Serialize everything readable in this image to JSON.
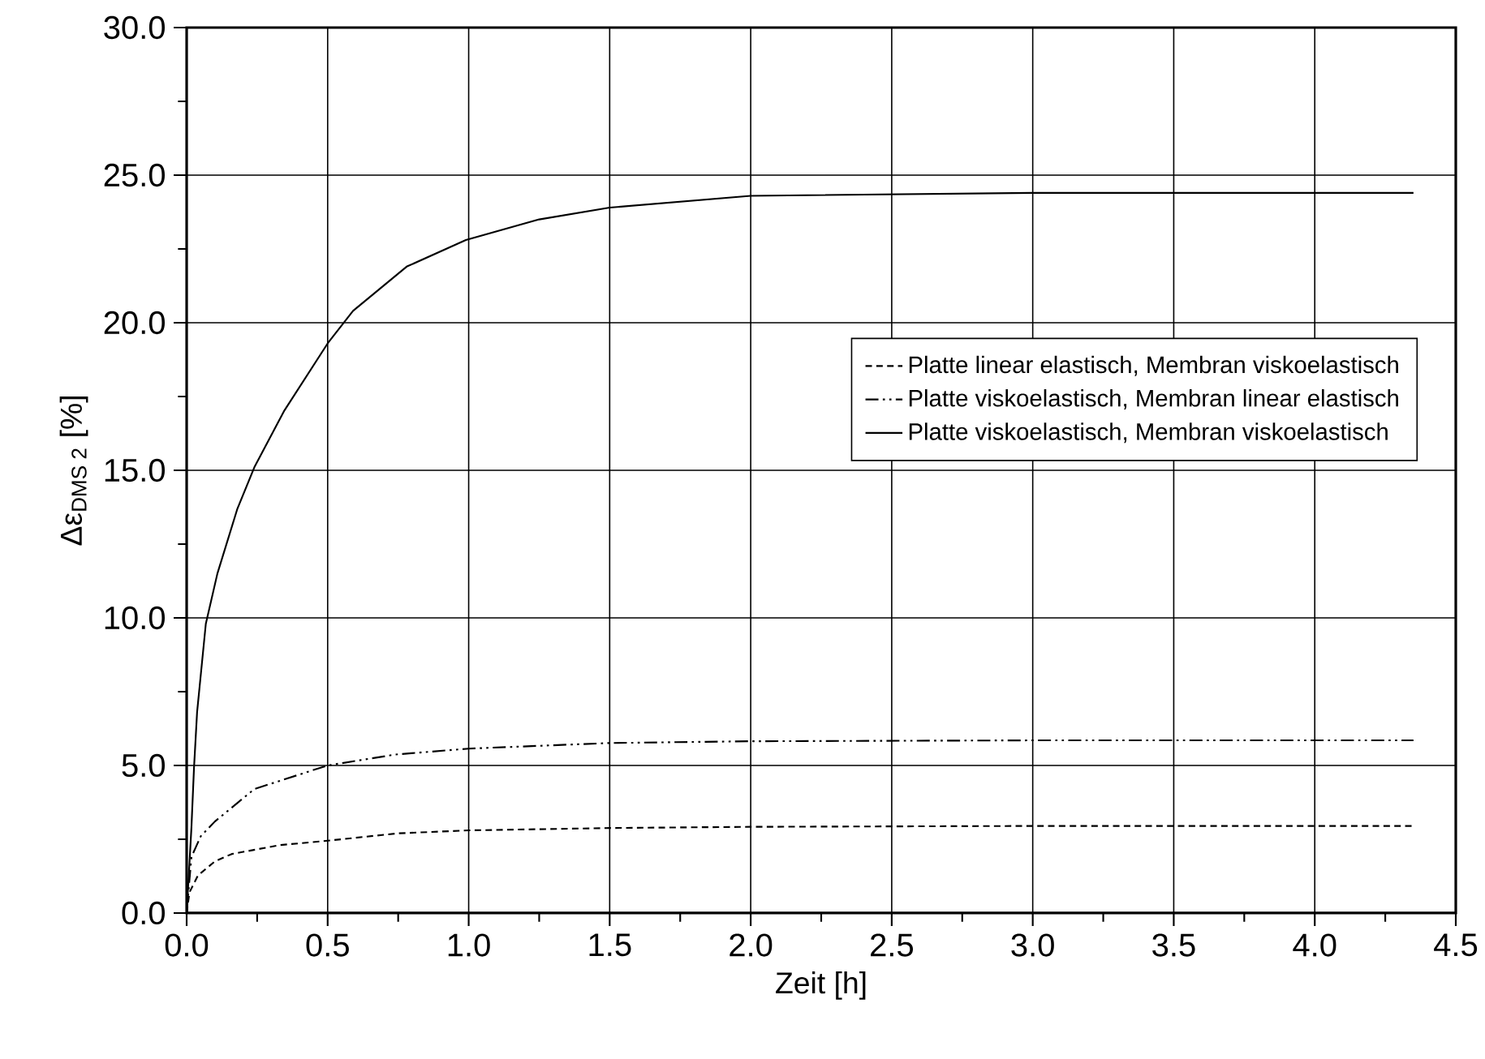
{
  "chart_data": {
    "type": "line",
    "xlabel": "Zeit   [h]",
    "ylabel": "Δε$_{DMS 2}$   [%]",
    "xlim": [
      0,
      4.5
    ],
    "ylim": [
      0,
      30
    ],
    "xticks": [
      {
        "value": 0,
        "label": "0.0"
      },
      {
        "value": 0.5,
        "label": "0.5"
      },
      {
        "value": 1,
        "label": "1.0"
      },
      {
        "value": 1.5,
        "label": "1.5"
      },
      {
        "value": 2,
        "label": "2.0"
      },
      {
        "value": 2.5,
        "label": "2.5"
      },
      {
        "value": 3,
        "label": "3.0"
      },
      {
        "value": 3.5,
        "label": "3.5"
      },
      {
        "value": 4,
        "label": "4.0"
      },
      {
        "value": 4.5,
        "label": "4.5"
      }
    ],
    "yticks": [
      {
        "value": 0,
        "label": "0.0"
      },
      {
        "value": 5,
        "label": "5.0"
      },
      {
        "value": 10,
        "label": "10.0"
      },
      {
        "value": 15,
        "label": "15.0"
      },
      {
        "value": 20,
        "label": "20.0"
      },
      {
        "value": 25,
        "label": "25.0"
      },
      {
        "value": 30,
        "label": "30.0"
      }
    ],
    "grid": true,
    "legend": "right",
    "series": [
      {
        "name": "Platte linear elastisch, Membran viskoelastisch",
        "color": "#000000",
        "line_style": "dashed",
        "x": [
          0,
          0.01,
          0.04,
          0.1,
          0.16,
          0.33,
          0.5,
          0.75,
          1.0,
          1.5,
          2.0,
          3.0,
          4.35
        ],
        "values": [
          0,
          0.7,
          1.27,
          1.75,
          2.0,
          2.3,
          2.45,
          2.7,
          2.8,
          2.88,
          2.92,
          2.95,
          2.95
        ]
      },
      {
        "name": "Platte viskoelastisch, Membran linear elastisch",
        "color": "#000000",
        "line_style": "dashdotdot",
        "x": [
          0,
          0.017,
          0.05,
          0.1,
          0.24,
          0.5,
          0.74,
          1.0,
          1.5,
          2.0,
          3.0,
          4.35
        ],
        "values": [
          0,
          1.9,
          2.6,
          3.1,
          4.2,
          5.0,
          5.37,
          5.57,
          5.76,
          5.82,
          5.85,
          5.85
        ]
      },
      {
        "name": "Platte viskoelastisch, Membran viskoelastisch",
        "color": "#000000",
        "line_style": "solid",
        "x": [
          0,
          0.017,
          0.026,
          0.037,
          0.068,
          0.109,
          0.18,
          0.24,
          0.345,
          0.5,
          0.59,
          0.78,
          0.99,
          1.25,
          1.5,
          2.0,
          3.0,
          4.35
        ],
        "values": [
          0,
          2.9,
          4.9,
          6.8,
          9.8,
          11.5,
          13.7,
          15.1,
          17.0,
          19.3,
          20.4,
          21.9,
          22.8,
          23.5,
          23.9,
          24.3,
          24.4,
          24.4
        ]
      }
    ]
  }
}
